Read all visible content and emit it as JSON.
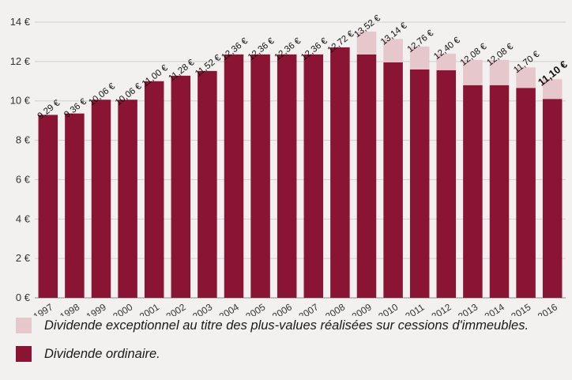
{
  "colors": {
    "ordinary": "#8a1434",
    "exceptional": "#e6c7cb",
    "grid": "#cfcfcf",
    "axis": "#8a8a8a",
    "text": "#333333"
  },
  "legend": [
    {
      "label": "Dividende exceptionnel au titre des plus-values réalisées sur cessions d'immeubles.",
      "color": "#e6c7cb"
    },
    {
      "label": "Dividende ordinaire.",
      "color": "#8a1434"
    }
  ],
  "chart_data": {
    "type": "bar",
    "stacked": true,
    "categories": [
      "1997",
      "1998",
      "1999",
      "2000",
      "2001",
      "2002",
      "2003",
      "2004",
      "2005",
      "2006",
      "2007",
      "2008",
      "2009",
      "2010",
      "2011",
      "2012",
      "2013",
      "2014",
      "2015",
      "2016"
    ],
    "series": [
      {
        "name": "Dividende ordinaire.",
        "color": "#8a1434",
        "values": [
          9.29,
          9.36,
          10.06,
          10.06,
          11.0,
          11.28,
          11.52,
          12.36,
          12.36,
          12.36,
          12.36,
          12.72,
          12.36,
          11.96,
          11.6,
          11.56,
          10.8,
          10.8,
          10.66,
          10.1
        ]
      },
      {
        "name": "Dividende exceptionnel au titre des plus-values réalisées sur cessions d'immeubles.",
        "color": "#e6c7cb",
        "values": [
          0,
          0,
          0,
          0,
          0,
          0,
          0,
          0,
          0,
          0,
          0,
          0,
          1.16,
          1.18,
          1.16,
          0.84,
          1.28,
          1.28,
          1.04,
          1.0
        ]
      }
    ],
    "data_labels": [
      "9,29 €",
      "9,36 €",
      "10,06 €",
      "10,06 €",
      "11,00 €",
      "11,28 €",
      "11,52 €",
      "12,36 €",
      "12,36 €",
      "12,36 €",
      "12,36 €",
      "12,72 €",
      "13,52 €",
      "13,14 €",
      "12,76 €",
      "12,40 €",
      "12,08 €",
      "12,08 €",
      "11,70 €",
      "11,10 €"
    ],
    "highlight_label_index": 19,
    "yticks": [
      "0 €",
      "2 €",
      "4 €",
      "6 €",
      "8 €",
      "10 €",
      "12 €",
      "14 €"
    ],
    "ytick_values": [
      0,
      2,
      4,
      6,
      8,
      10,
      12,
      14
    ],
    "ylim": [
      0,
      14
    ],
    "grid": true,
    "legend_position": "bottom-left"
  }
}
